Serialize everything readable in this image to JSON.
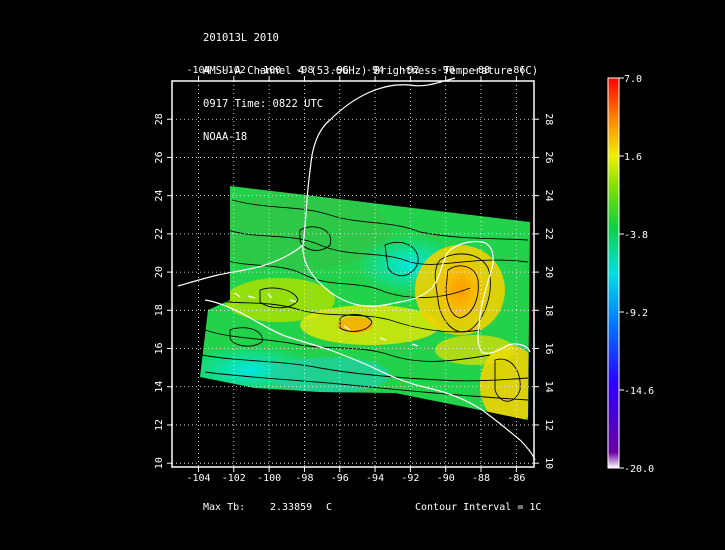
{
  "header": {
    "line1": "201013L 2010",
    "line2": "AMSU-A Channel 4 (53.6GHz) Brightness Temperature (C)",
    "line3": "0917 Time: 0822 UTC",
    "line4": "NOAA-18"
  },
  "map": {
    "lon_range": [
      -105.5,
      -85
    ],
    "lat_range": [
      9.8,
      30
    ],
    "lon_ticks": [
      "-104",
      "-102",
      "-100",
      "-98",
      "-96",
      "-94",
      "-92",
      "-90",
      "-88",
      "-86"
    ],
    "lon_tick_values": [
      -104,
      -102,
      -100,
      -98,
      -96,
      -94,
      -92,
      -90,
      -88,
      -86
    ],
    "lat_ticks": [
      "10",
      "12",
      "14",
      "16",
      "18",
      "20",
      "22",
      "24",
      "26",
      "28"
    ],
    "lat_tick_values": [
      10,
      12,
      14,
      16,
      18,
      20,
      22,
      24,
      26,
      28
    ],
    "grid": true
  },
  "colorbar": {
    "labels": [
      "7.0",
      "1.6",
      "-3.8",
      "-9.2",
      "-14.6",
      "-20.0"
    ],
    "label_values": [
      7.0,
      1.6,
      -3.8,
      -9.2,
      -14.6,
      -20.0
    ],
    "range": [
      -20.0,
      7.0
    ]
  },
  "footer": {
    "max_label": "Max Tb:",
    "max_value": "2.33859",
    "max_unit": "C",
    "contour_interval": "Contour Interval = 1C"
  }
}
